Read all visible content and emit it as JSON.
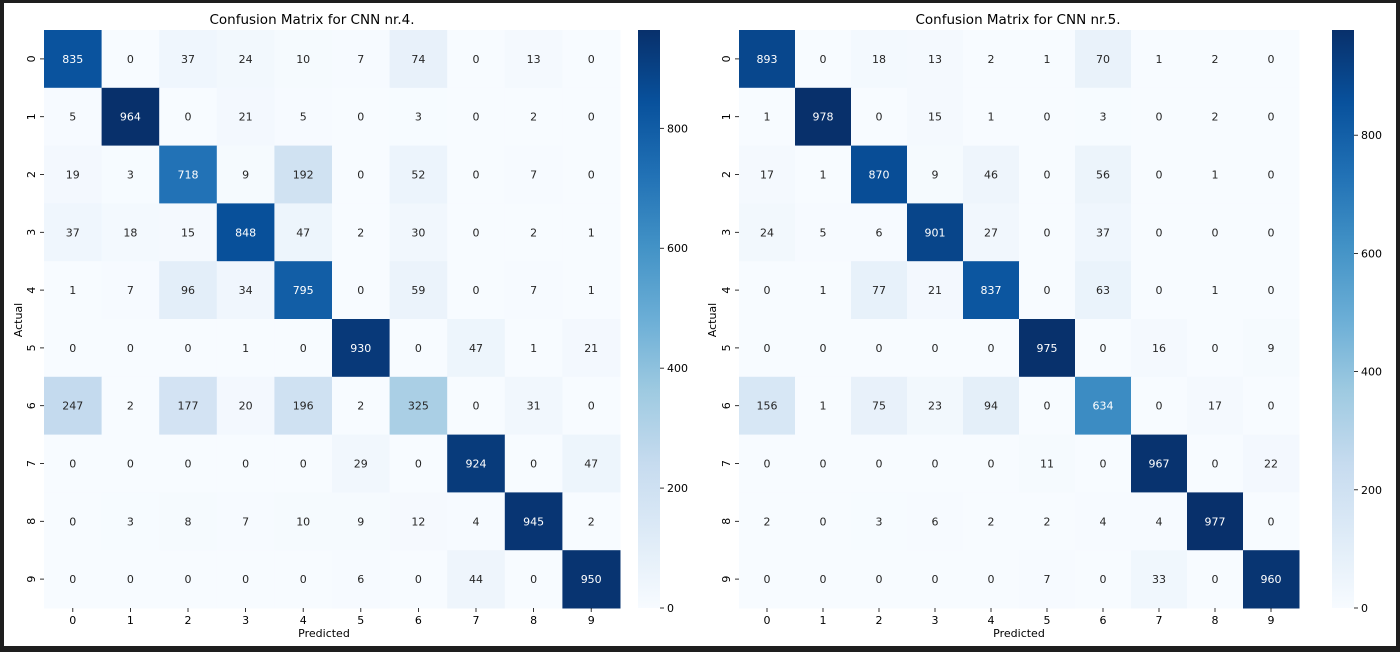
{
  "chart_data": [
    {
      "type": "heatmap",
      "title": "Confusion Matrix for CNN nr.4.",
      "xlabel": "Predicted",
      "ylabel": "Actual",
      "x_categories": [
        "0",
        "1",
        "2",
        "3",
        "4",
        "5",
        "6",
        "7",
        "8",
        "9"
      ],
      "y_categories": [
        "0",
        "1",
        "2",
        "3",
        "4",
        "5",
        "6",
        "7",
        "8",
        "9"
      ],
      "colormap": "Blues",
      "colorbar": {
        "min": 0,
        "max": 964,
        "ticks": [
          0,
          200,
          400,
          600,
          800
        ]
      },
      "values": [
        [
          835,
          0,
          37,
          24,
          10,
          7,
          74,
          0,
          13,
          0
        ],
        [
          5,
          964,
          0,
          21,
          5,
          0,
          3,
          0,
          2,
          0
        ],
        [
          19,
          3,
          718,
          9,
          192,
          0,
          52,
          0,
          7,
          0
        ],
        [
          37,
          18,
          15,
          848,
          47,
          2,
          30,
          0,
          2,
          1
        ],
        [
          1,
          7,
          96,
          34,
          795,
          0,
          59,
          0,
          7,
          1
        ],
        [
          0,
          0,
          0,
          1,
          0,
          930,
          0,
          47,
          1,
          21
        ],
        [
          247,
          2,
          177,
          20,
          196,
          2,
          325,
          0,
          31,
          0
        ],
        [
          0,
          0,
          0,
          0,
          0,
          29,
          0,
          924,
          0,
          47
        ],
        [
          0,
          3,
          8,
          7,
          10,
          9,
          12,
          4,
          945,
          2
        ],
        [
          0,
          0,
          0,
          0,
          0,
          6,
          0,
          44,
          0,
          950
        ]
      ]
    },
    {
      "type": "heatmap",
      "title": "Confusion Matrix for CNN nr.5.",
      "xlabel": "Predicted",
      "ylabel": "Actual",
      "x_categories": [
        "0",
        "1",
        "2",
        "3",
        "4",
        "5",
        "6",
        "7",
        "8",
        "9"
      ],
      "y_categories": [
        "0",
        "1",
        "2",
        "3",
        "4",
        "5",
        "6",
        "7",
        "8",
        "9"
      ],
      "colormap": "Blues",
      "colorbar": {
        "min": 0,
        "max": 978,
        "ticks": [
          0,
          200,
          400,
          600,
          800
        ]
      },
      "values": [
        [
          893,
          0,
          18,
          13,
          2,
          1,
          70,
          1,
          2,
          0
        ],
        [
          1,
          978,
          0,
          15,
          1,
          0,
          3,
          0,
          2,
          0
        ],
        [
          17,
          1,
          870,
          9,
          46,
          0,
          56,
          0,
          1,
          0
        ],
        [
          24,
          5,
          6,
          901,
          27,
          0,
          37,
          0,
          0,
          0
        ],
        [
          0,
          1,
          77,
          21,
          837,
          0,
          63,
          0,
          1,
          0
        ],
        [
          0,
          0,
          0,
          0,
          0,
          975,
          0,
          16,
          0,
          9
        ],
        [
          156,
          1,
          75,
          23,
          94,
          0,
          634,
          0,
          17,
          0
        ],
        [
          0,
          0,
          0,
          0,
          0,
          11,
          0,
          967,
          0,
          22
        ],
        [
          2,
          0,
          3,
          6,
          2,
          2,
          4,
          4,
          977,
          0
        ],
        [
          0,
          0,
          0,
          0,
          0,
          7,
          0,
          33,
          0,
          960
        ]
      ]
    }
  ]
}
